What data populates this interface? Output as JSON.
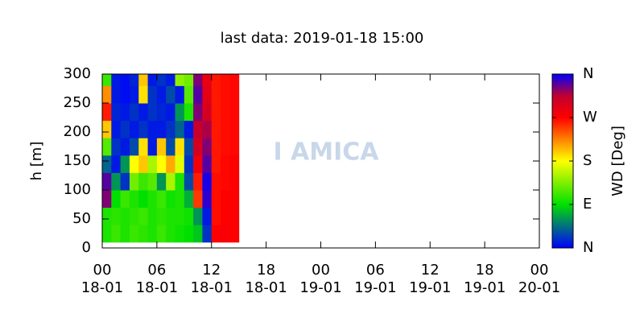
{
  "chart_data": {
    "type": "heatmap",
    "title": "last data: 2019-01-18 15:00",
    "y_label": "h [m]",
    "colorbar_label": "WD [Deg]",
    "watermark": "I AMICA",
    "xlim": [
      0,
      48
    ],
    "xticks": [
      {
        "value": 0,
        "label": "00"
      },
      {
        "value": 6,
        "label": "06"
      },
      {
        "value": 12,
        "label": "12"
      },
      {
        "value": 18,
        "label": "18"
      },
      {
        "value": 24,
        "label": "00"
      },
      {
        "value": 30,
        "label": "06"
      },
      {
        "value": 36,
        "label": "12"
      },
      {
        "value": 42,
        "label": "18"
      },
      {
        "value": 48,
        "label": "00"
      }
    ],
    "xtick_dates": [
      "18-01",
      "18-01",
      "18-01",
      "18-01",
      "19-01",
      "19-01",
      "19-01",
      "19-01",
      "20-01"
    ],
    "ylim": [
      0,
      300
    ],
    "yticks": [
      0,
      50,
      100,
      150,
      200,
      250,
      300
    ],
    "clim": [
      0,
      360
    ],
    "cticks": [
      {
        "value": 0,
        "label": "N"
      },
      {
        "value": 90,
        "label": "E"
      },
      {
        "value": 180,
        "label": "S"
      },
      {
        "value": 270,
        "label": "W"
      },
      {
        "value": 360,
        "label": "N"
      }
    ],
    "colormap": [
      {
        "value": 0,
        "color": "#0000ff"
      },
      {
        "value": 90,
        "color": "#00e000"
      },
      {
        "value": 180,
        "color": "#ffff00"
      },
      {
        "value": 225,
        "color": "#ff8000"
      },
      {
        "value": 270,
        "color": "#ff0000"
      },
      {
        "value": 315,
        "color": "#c00030"
      },
      {
        "value": 360,
        "color": "#0000ff"
      }
    ],
    "x_edges": [
      0,
      1,
      2,
      3,
      4,
      5,
      6,
      7,
      8,
      9,
      10,
      11,
      12,
      13,
      14,
      15
    ],
    "y_edges": [
      10,
      40,
      70,
      100,
      130,
      160,
      190,
      220,
      250,
      280,
      300
    ],
    "values": [
      [
        100,
        110,
        100,
        110,
        105,
        100,
        110,
        100,
        95,
        90,
        80,
        20,
        270,
        275,
        270
      ],
      [
        100,
        105,
        100,
        105,
        110,
        100,
        105,
        100,
        100,
        95,
        60,
        10,
        265,
        270,
        272
      ],
      [
        330,
        90,
        110,
        100,
        90,
        100,
        110,
        95,
        100,
        70,
        250,
        350,
        265,
        270,
        270
      ],
      [
        340,
        60,
        20,
        130,
        110,
        120,
        60,
        150,
        100,
        30,
        260,
        355,
        265,
        268,
        270
      ],
      [
        40,
        10,
        60,
        180,
        200,
        150,
        180,
        210,
        170,
        20,
        280,
        340,
        262,
        268,
        270
      ],
      [
        120,
        20,
        10,
        30,
        190,
        10,
        200,
        30,
        190,
        30,
        300,
        330,
        262,
        266,
        268
      ],
      [
        200,
        10,
        20,
        10,
        20,
        10,
        10,
        20,
        40,
        10,
        310,
        320,
        262,
        266,
        268
      ],
      [
        260,
        15,
        10,
        20,
        10,
        20,
        15,
        10,
        60,
        100,
        330,
        300,
        262,
        266,
        268
      ],
      [
        220,
        10,
        5,
        10,
        190,
        20,
        10,
        30,
        10,
        120,
        340,
        290,
        262,
        266,
        268
      ],
      [
        110,
        10,
        5,
        15,
        200,
        10,
        20,
        10,
        140,
        130,
        330,
        285,
        262,
        266,
        268
      ]
    ]
  }
}
